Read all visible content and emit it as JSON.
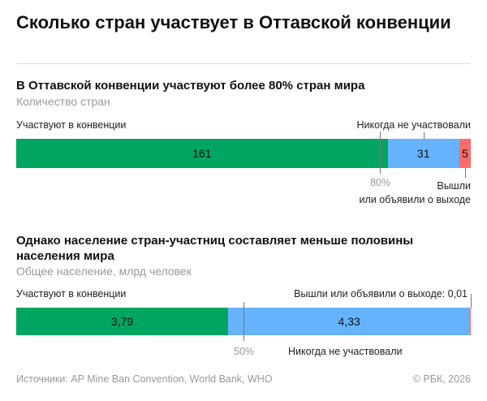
{
  "title": "Сколько стран участвует в Оттавской конвенции",
  "colors": {
    "participate": "#00a561",
    "never": "#66b3ff",
    "left": "#ff6b6b"
  },
  "chart_data": [
    {
      "type": "bar",
      "title": "В Оттавской конвенции участвуют более 80% стран мира",
      "subtitle": "Количество стран",
      "categories": [
        "Участвуют в конвенции",
        "Никогда не участвовали",
        "Вышли или объявили о выходе"
      ],
      "values": [
        161,
        31,
        5
      ],
      "value_labels": [
        "161",
        "31",
        "5"
      ],
      "marker": "80%",
      "marker_value": 0.8,
      "label_left": "Участвуют в конвенции",
      "label_never": "Никогда не участвовали",
      "label_left_out": "Вышли\nили объявили о выходе"
    },
    {
      "type": "bar",
      "title": "Однако население стран-участниц составляет меньше половины населения мира",
      "subtitle": "Общее население, млрд человек",
      "categories": [
        "Участвуют в конвенции",
        "Никогда не участвовали",
        "Вышли или объявили о выходе"
      ],
      "values": [
        3.79,
        4.33,
        0.01
      ],
      "value_labels": [
        "3,79",
        "4,33",
        "0,01"
      ],
      "marker": "50%",
      "marker_value": 0.5,
      "label_left": "Участвуют в конвенции",
      "label_never": "Никогда не участвовали",
      "label_left_out": "Вышли или объявили о выходе: 0,01"
    }
  ],
  "footer": {
    "sources": "Источники: AP Mine Ban Convention, World Bank, WHO",
    "copyright": "© РБК, 2026"
  }
}
